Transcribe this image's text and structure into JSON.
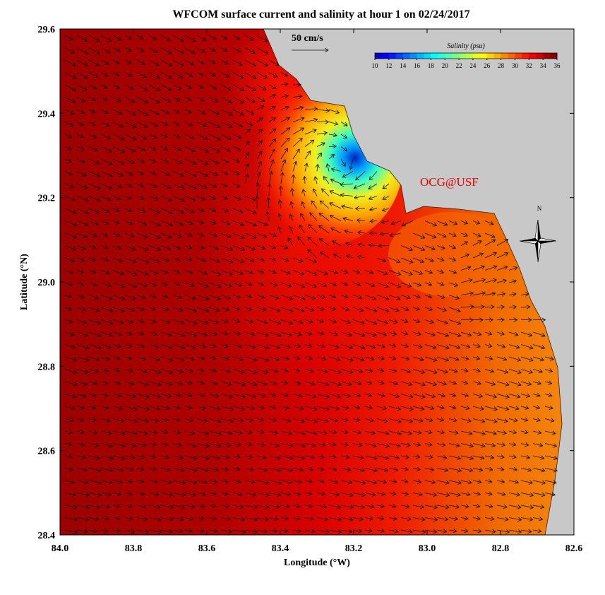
{
  "title": "WFCOM surface current and salinity at hour 1 on 02/24/2017",
  "x_axis": {
    "label": "Longitude (°W)",
    "lim": [
      84.0,
      82.6
    ],
    "ticks": [
      {
        "value": 84.0,
        "label": "84.0"
      },
      83.8,
      83.6,
      83.4,
      83.2,
      {
        "value": 83.0,
        "label": "83.0"
      },
      82.8,
      82.6
    ]
  },
  "y_axis": {
    "label": "Latitude (°N)",
    "lim": [
      28.4,
      29.6
    ],
    "ticks": [
      28.4,
      28.6,
      28.8,
      {
        "value": 29.0,
        "label": "29.0"
      },
      29.2,
      29.4,
      29.6
    ]
  },
  "scale_arrow": {
    "label": "50 cm/s"
  },
  "colorbar": {
    "title": "Salinity (psu)",
    "lim": [
      10,
      36
    ],
    "ticks": [
      10,
      12,
      14,
      16,
      18,
      20,
      22,
      24,
      26,
      28,
      30,
      32,
      34,
      36
    ]
  },
  "credit": "OCG@USF",
  "compass": "N"
}
